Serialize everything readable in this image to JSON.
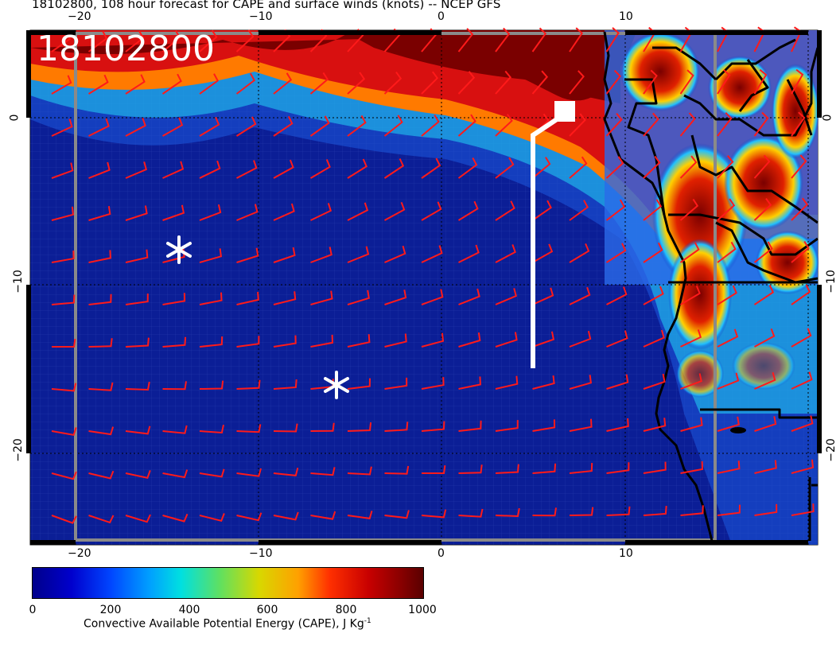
{
  "title": "18102800, 108 hour forecast for CAPE and surface winds (knots) -- NCEP GFS",
  "stamp": "18102800",
  "lon_ticks_top": [
    "−20",
    "−10",
    "0",
    "10"
  ],
  "lon_ticks_bottom": [
    "−20",
    "−10",
    "0",
    "10"
  ],
  "lat_ticks_left": [
    "0",
    "−10",
    "−20"
  ],
  "lat_ticks_right": [
    "0",
    "−10",
    "−20"
  ],
  "colorbar": {
    "ticks": [
      "0",
      "200",
      "400",
      "600",
      "800",
      "1000"
    ],
    "label": "Convective Available Potential Energy (CAPE), J Kg",
    "label_sup": "-1",
    "colors": [
      "#00008b",
      "#0046ff",
      "#00e0e0",
      "#d8d800",
      "#ff3000",
      "#8b0000"
    ]
  },
  "colors": {
    "ocean_low": "#0a1a8c",
    "high_cape": "#7a0000",
    "wind_barb": "#ff1a1a",
    "track": "#ffffff",
    "coast": "#000000"
  },
  "markers": [
    {
      "name": "asterisk-marker-1",
      "lon": -14.2,
      "lat": -8.0
    },
    {
      "name": "asterisk-marker-2",
      "lon": -5.7,
      "lat": -16.0
    }
  ],
  "track": {
    "name": "flight-track",
    "points": [
      [
        5,
        -15
      ],
      [
        5,
        -1
      ],
      [
        6.2,
        0
      ],
      [
        7.3,
        0.5
      ]
    ]
  }
}
